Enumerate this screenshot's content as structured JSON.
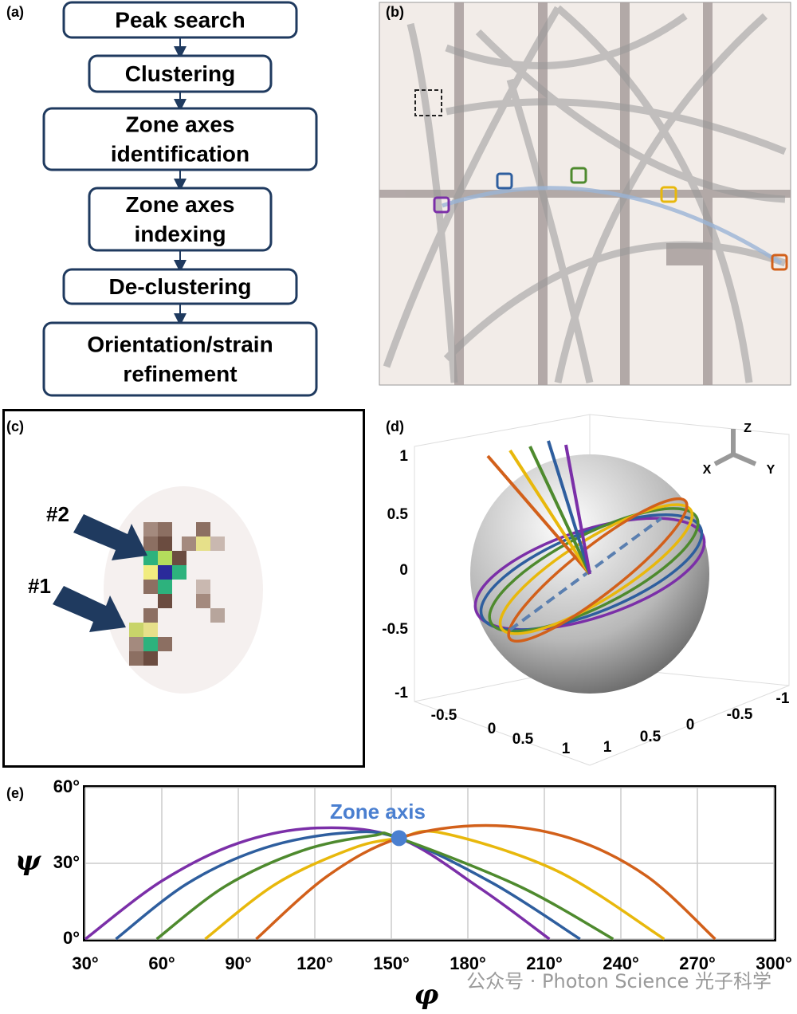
{
  "panel_labels": [
    "(a)",
    "(b)",
    "(c)",
    "(d)",
    "(e)"
  ],
  "flowchart": {
    "steps": [
      [
        "Peak search"
      ],
      [
        "Clustering"
      ],
      [
        "Zone axes",
        "identification"
      ],
      [
        "Zone axes",
        "indexing"
      ],
      [
        "De-clustering"
      ],
      [
        "Orientation/strain",
        "refinement"
      ]
    ]
  },
  "panel_c": {
    "labels": [
      "#2",
      "#1"
    ]
  },
  "panel_d": {
    "axis_names": [
      "Z",
      "X",
      "Y"
    ],
    "z_ticks": [
      1,
      0.5,
      0,
      -0.5,
      -1
    ],
    "x_ticks": [
      -0.5,
      0,
      0.5,
      1
    ],
    "y_ticks": [
      -1,
      -0.5,
      0,
      0.5,
      1
    ]
  },
  "chart_data": {
    "type": "line",
    "annotation": "Zone axis",
    "xlabel": "φ",
    "ylabel": "ψ",
    "xlim": [
      30,
      300
    ],
    "ylim": [
      0,
      60
    ],
    "xticks": [
      {
        "value": 30,
        "label": "30°"
      },
      {
        "value": 60,
        "label": "60°"
      },
      {
        "value": 90,
        "label": "90°"
      },
      {
        "value": 120,
        "label": "120°"
      },
      {
        "value": 150,
        "label": "150°"
      },
      {
        "value": 180,
        "label": "180°"
      },
      {
        "value": 210,
        "label": "210°"
      },
      {
        "value": 240,
        "label": "240°"
      },
      {
        "value": 270,
        "label": "270°"
      },
      {
        "value": 300,
        "label": "300°"
      }
    ],
    "yticks": [
      {
        "value": 0,
        "label": "0°"
      },
      {
        "value": 30,
        "label": "30°"
      },
      {
        "value": 60,
        "label": "60°"
      }
    ],
    "grid": true,
    "series": [
      {
        "color": "#7b2fa8",
        "x": [
          30,
          60,
          90,
          121,
          153,
          185,
          212
        ],
        "values": [
          0,
          23,
          38,
          44,
          40,
          20,
          0
        ]
      },
      {
        "color": "#2e5e9e",
        "x": [
          42,
          70,
          100,
          131,
          153,
          190,
          224
        ],
        "values": [
          0,
          22,
          36,
          42,
          40,
          22,
          0
        ]
      },
      {
        "color": "#4e8a2e",
        "x": [
          58,
          85,
          115,
          143,
          153,
          200,
          237
        ],
        "values": [
          0,
          21,
          35,
          41,
          40,
          21,
          0
        ]
      },
      {
        "color": "#e8b80c",
        "x": [
          77,
          105,
          135,
          153,
          170,
          215,
          257
        ],
        "values": [
          0,
          22,
          36,
          40,
          42,
          27,
          0
        ]
      },
      {
        "color": "#d2601a",
        "x": [
          97,
          125,
          153,
          187,
          220,
          250,
          277
        ],
        "values": [
          0,
          25,
          40,
          45,
          40,
          25,
          0
        ]
      }
    ],
    "zone_axis": {
      "x": 153,
      "y": 40,
      "color": "#4a7fd0"
    }
  },
  "watermark": "公众号 · Photon Science 光子科学"
}
